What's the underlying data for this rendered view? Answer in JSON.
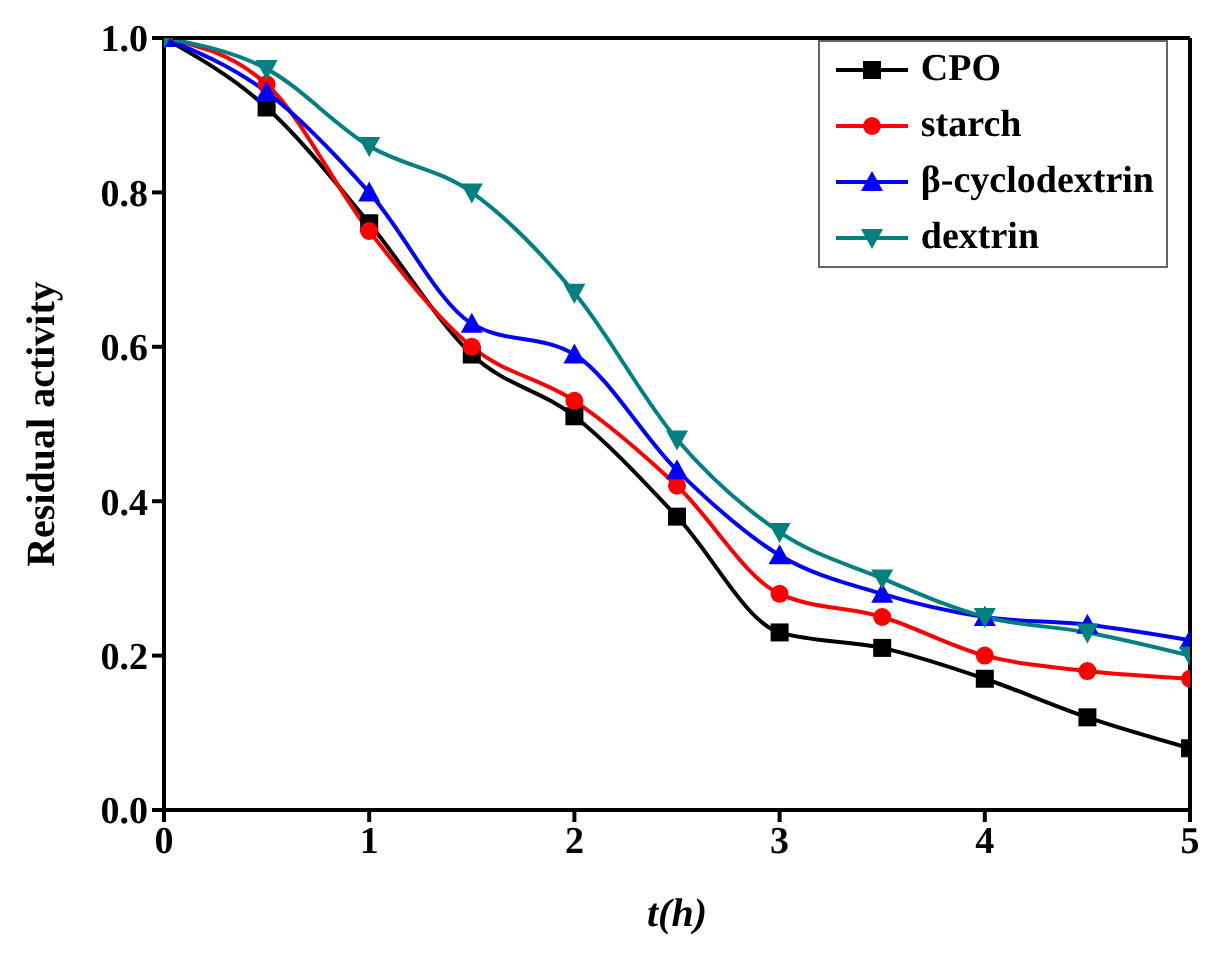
{
  "chart_data": {
    "type": "line",
    "xlabel": "t(h)",
    "ylabel": "Residual activity",
    "x": [
      0,
      0.5,
      1,
      1.5,
      2,
      2.5,
      3,
      3.5,
      4,
      4.5,
      5
    ],
    "series": [
      {
        "name": "CPO",
        "color": "#000000",
        "marker": "square",
        "values": [
          1,
          0.91,
          0.76,
          0.59,
          0.51,
          0.38,
          0.23,
          0.21,
          0.17,
          0.12,
          0.08
        ]
      },
      {
        "name": "starch",
        "color": "#ff0000",
        "marker": "circle",
        "values": [
          1,
          0.94,
          0.75,
          0.6,
          0.53,
          0.42,
          0.28,
          0.25,
          0.2,
          0.18,
          0.17
        ]
      },
      {
        "name": "β-cyclodextrin",
        "color": "#0000ff",
        "marker": "triangle",
        "values": [
          1,
          0.93,
          0.8,
          0.63,
          0.59,
          0.44,
          0.33,
          0.28,
          0.25,
          0.24,
          0.22
        ]
      },
      {
        "name": "dextrin",
        "color": "#008080",
        "marker": "triangle-down",
        "values": [
          1,
          0.96,
          0.86,
          0.8,
          0.67,
          0.48,
          0.36,
          0.3,
          0.25,
          0.23,
          0.2
        ]
      }
    ],
    "xlim": [
      0,
      5
    ],
    "xticks": [
      0,
      1,
      2,
      3,
      4,
      5
    ],
    "ylim": [
      0,
      1
    ],
    "yticks": [
      {
        "value": 0,
        "label": "0.0"
      },
      {
        "value": 0.2,
        "label": "0.2"
      },
      {
        "value": 0.4,
        "label": "0.4"
      },
      {
        "value": 0.6,
        "label": "0.6"
      },
      {
        "value": 0.8,
        "label": "0.8"
      },
      {
        "value": 1,
        "label": "1.0"
      }
    ],
    "legend": "top right",
    "grid": false,
    "line_style": "solid"
  }
}
